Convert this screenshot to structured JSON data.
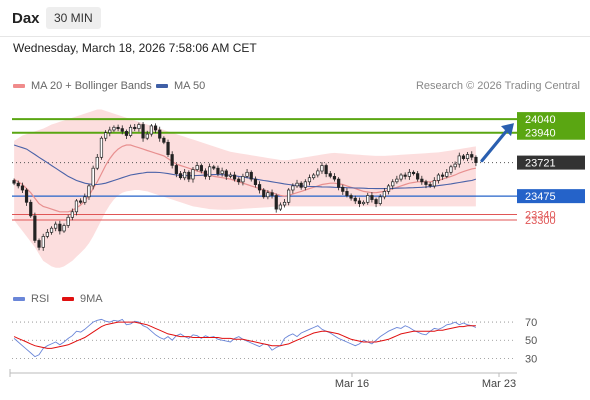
{
  "header": {
    "symbol": "Dax",
    "timeframe": "30 MIN"
  },
  "timestamp": "Wednesday, March 18, 2026 7:58:06 AM CET",
  "credit": "Research © 2026 Trading Central",
  "colors": {
    "candle": "#222222",
    "bollinger_fill": "#fbd8d8",
    "ma20": "#e89090",
    "ma50": "#4a62a8",
    "green_level": "#5aa612",
    "blue_level": "#2563c9",
    "red_level": "#e05656",
    "price": "#333333",
    "rsi": "#6a86d8",
    "rsi_ma": "#e01010",
    "arrow": "#2a5fb0"
  },
  "chart_data": [
    {
      "type": "candlestick",
      "title": "Dax",
      "timeframe": "30 MIN",
      "x_ticks": [
        "Mar 16",
        "Mar 23"
      ],
      "legend": [
        {
          "name": "MA 20 + Bollinger Bands",
          "color": "#f08b8b"
        },
        {
          "name": "MA 50",
          "color": "#3f5fa6"
        }
      ],
      "levels": [
        {
          "value": 24040,
          "label": "24040",
          "kind": "resistance",
          "color": "#5aa612"
        },
        {
          "value": 23940,
          "label": "23940",
          "kind": "resistance",
          "color": "#5aa612"
        },
        {
          "value": 23721,
          "label": "23721",
          "kind": "current",
          "color": "#333333"
        },
        {
          "value": 23475,
          "label": "23475",
          "kind": "pivot",
          "color": "#2563c9"
        },
        {
          "value": 23340,
          "label": "23340",
          "kind": "support",
          "color": "#e05656"
        },
        {
          "value": 23300,
          "label": "23300",
          "kind": "support",
          "color": "#e05656"
        }
      ],
      "close": [
        23570,
        23550,
        23520,
        23430,
        23330,
        23150,
        23100,
        23180,
        23210,
        23240,
        23270,
        23220,
        23260,
        23320,
        23360,
        23440,
        23430,
        23470,
        23550,
        23680,
        23760,
        23900,
        23940,
        23960,
        23980,
        23970,
        23950,
        23920,
        23980,
        23970,
        24000,
        23900,
        23930,
        23990,
        23960,
        23900,
        23870,
        23780,
        23700,
        23640,
        23610,
        23650,
        23600,
        23670,
        23700,
        23660,
        23620,
        23690,
        23680,
        23640,
        23660,
        23620,
        23630,
        23600,
        23580,
        23620,
        23650,
        23600,
        23560,
        23520,
        23470,
        23500,
        23480,
        23380,
        23410,
        23430,
        23520,
        23550,
        23570,
        23540,
        23580,
        23610,
        23630,
        23660,
        23700,
        23640,
        23620,
        23600,
        23540,
        23510,
        23480,
        23460,
        23440,
        23420,
        23430,
        23480,
        23450,
        23420,
        23470,
        23510,
        23550,
        23580,
        23600,
        23630,
        23620,
        23650,
        23640,
        23600,
        23580,
        23560,
        23550,
        23590,
        23630,
        23620,
        23650,
        23690,
        23710,
        23770,
        23750,
        23780,
        23760,
        23721
      ],
      "ma20": [
        23600,
        23580,
        23560,
        23530,
        23500,
        23460,
        23420,
        23400,
        23390,
        23380,
        23370,
        23360,
        23360,
        23360,
        23370,
        23390,
        23410,
        23440,
        23480,
        23530,
        23580,
        23640,
        23700,
        23750,
        23790,
        23820,
        23840,
        23850,
        23850,
        23840,
        23830,
        23820,
        23810,
        23800,
        23790,
        23780,
        23770,
        23750,
        23730,
        23710,
        23700,
        23690,
        23680,
        23670,
        23660,
        23650,
        23640,
        23630,
        23620,
        23615,
        23610,
        23605,
        23600,
        23590,
        23580,
        23570,
        23560,
        23550,
        23540,
        23530,
        23520,
        23510,
        23500,
        23490,
        23480,
        23475,
        23480,
        23490,
        23500,
        23510,
        23520,
        23530,
        23540,
        23550,
        23560,
        23565,
        23570,
        23570,
        23565,
        23560,
        23550,
        23540,
        23530,
        23520,
        23510,
        23505,
        23500,
        23500,
        23505,
        23510,
        23520,
        23530,
        23540,
        23550,
        23560,
        23570,
        23575,
        23580,
        23580,
        23580,
        23580,
        23585,
        23590,
        23600,
        23610,
        23620,
        23630,
        23645,
        23655,
        23665,
        23675,
        23680
      ],
      "ma50": [
        23850,
        23840,
        23830,
        23820,
        23800,
        23780,
        23760,
        23740,
        23720,
        23700,
        23680,
        23660,
        23640,
        23620,
        23605,
        23590,
        23580,
        23570,
        23565,
        23560,
        23560,
        23565,
        23570,
        23580,
        23590,
        23600,
        23610,
        23620,
        23630,
        23635,
        23640,
        23645,
        23650,
        23650,
        23650,
        23648,
        23645,
        23640,
        23635,
        23630,
        23628,
        23626,
        23625,
        23625,
        23626,
        23628,
        23630,
        23632,
        23633,
        23633,
        23632,
        23630,
        23628,
        23625,
        23620,
        23615,
        23610,
        23605,
        23600,
        23595,
        23590,
        23585,
        23580,
        23575,
        23570,
        23565,
        23560,
        23556,
        23553,
        23550,
        23548,
        23546,
        23545,
        23544,
        23543,
        23542,
        23541,
        23540,
        23539,
        23538,
        23537,
        23536,
        23535,
        23534,
        23533,
        23532,
        23531,
        23530,
        23530,
        23530,
        23531,
        23532,
        23533,
        23534,
        23535,
        23536,
        23537,
        23538,
        23540,
        23542,
        23545,
        23548,
        23552,
        23556,
        23560,
        23565,
        23570,
        23575,
        23580,
        23585,
        23590,
        23600
      ],
      "bb_upper": [
        23880,
        23900,
        23920,
        23930,
        23940,
        23950,
        23960,
        23970,
        23985,
        24000,
        24010,
        24020,
        24030,
        24040,
        24050,
        24060,
        24070,
        24080,
        24090,
        24100,
        24110,
        24110,
        24100,
        24090,
        24080,
        24070,
        24060,
        24050,
        24040,
        24030,
        24020,
        24010,
        24000,
        23990,
        23980,
        23970,
        23960,
        23950,
        23940,
        23930,
        23920,
        23910,
        23900,
        23890,
        23880,
        23870,
        23860,
        23850,
        23840,
        23830,
        23820,
        23810,
        23800,
        23795,
        23790,
        23785,
        23780,
        23775,
        23770,
        23765,
        23760,
        23755,
        23750,
        23745,
        23740,
        23738,
        23740,
        23745,
        23750,
        23755,
        23760,
        23765,
        23770,
        23775,
        23780,
        23785,
        23790,
        23792,
        23790,
        23788,
        23785,
        23782,
        23780,
        23778,
        23776,
        23774,
        23772,
        23770,
        23770,
        23770,
        23772,
        23774,
        23776,
        23778,
        23780,
        23782,
        23784,
        23786,
        23788,
        23790,
        23792,
        23794,
        23796,
        23800,
        23805,
        23810,
        23815,
        23820,
        23825,
        23830,
        23835,
        23840
      ],
      "bb_lower": [
        23300,
        23260,
        23220,
        23180,
        23140,
        23100,
        23050,
        23000,
        22980,
        22960,
        22950,
        22950,
        22960,
        22980,
        23000,
        23030,
        23060,
        23090,
        23130,
        23180,
        23240,
        23300,
        23360,
        23410,
        23450,
        23480,
        23500,
        23510,
        23515,
        23520,
        23520,
        23515,
        23510,
        23500,
        23490,
        23480,
        23470,
        23460,
        23450,
        23440,
        23430,
        23420,
        23410,
        23400,
        23395,
        23390,
        23385,
        23380,
        23378,
        23376,
        23375,
        23375,
        23376,
        23378,
        23380,
        23382,
        23384,
        23386,
        23388,
        23390,
        23392,
        23394,
        23396,
        23398,
        23400,
        23400,
        23400,
        23400,
        23400,
        23400,
        23400,
        23400,
        23400,
        23400,
        23400,
        23400,
        23400,
        23400,
        23400,
        23400,
        23400,
        23400,
        23400,
        23400,
        23400,
        23400,
        23400,
        23400,
        23400,
        23400,
        23400,
        23400,
        23400,
        23400,
        23400,
        23400,
        23400,
        23400,
        23400,
        23400,
        23400,
        23400,
        23400,
        23400,
        23400,
        23400,
        23400,
        23400,
        23400,
        23400,
        23400,
        23400
      ],
      "ylim": [
        22860,
        24180
      ],
      "forecast_arrow": {
        "from": 23721,
        "to": 24040
      }
    },
    {
      "type": "line",
      "title": "RSI",
      "series": [
        {
          "name": "RSI",
          "color": "#6a86d8",
          "values": [
            52,
            48,
            44,
            40,
            36,
            32,
            34,
            41,
            44,
            46,
            48,
            45,
            48,
            52,
            55,
            60,
            59,
            62,
            66,
            70,
            72,
            73,
            71,
            70,
            72,
            71,
            73,
            67,
            68,
            71,
            70,
            66,
            64,
            60,
            56,
            53,
            51,
            54,
            50,
            55,
            57,
            54,
            52,
            56,
            55,
            52,
            55,
            53,
            54,
            51,
            50,
            49,
            48,
            52,
            54,
            51,
            49,
            47,
            45,
            43,
            46,
            45,
            39,
            42,
            44,
            52,
            55,
            57,
            54,
            58,
            60,
            62,
            64,
            66,
            62,
            60,
            58,
            55,
            52,
            50,
            48,
            46,
            44,
            46,
            50,
            48,
            46,
            50,
            54,
            57,
            60,
            62,
            64,
            63,
            66,
            64,
            61,
            59,
            57,
            56,
            60,
            63,
            62,
            64,
            67,
            68,
            70,
            67,
            69,
            67,
            66,
            64
          ]
        },
        {
          "name": "9MA",
          "color": "#e01010",
          "values": [
            54,
            52,
            50,
            48,
            46,
            44,
            43,
            42,
            41,
            41,
            42,
            43,
            44,
            45,
            47,
            49,
            51,
            53,
            56,
            59,
            62,
            65,
            67,
            68,
            69,
            70,
            70,
            70,
            70,
            70,
            69,
            68,
            67,
            65,
            63,
            61,
            59,
            57,
            56,
            55,
            54,
            54,
            54,
            53,
            53,
            53,
            53,
            53,
            53,
            53,
            52,
            52,
            52,
            51,
            51,
            51,
            50,
            49,
            48,
            47,
            46,
            45,
            44,
            44,
            44,
            45,
            46,
            48,
            50,
            52,
            54,
            56,
            58,
            59,
            60,
            60,
            59,
            58,
            57,
            55,
            53,
            51,
            50,
            49,
            48,
            48,
            48,
            48,
            49,
            50,
            51,
            53,
            55,
            57,
            58,
            59,
            60,
            60,
            60,
            60,
            60,
            60,
            61,
            61,
            62,
            63,
            64,
            65,
            65,
            66,
            66,
            66
          ]
        }
      ],
      "yticks": [
        70,
        50,
        30
      ],
      "ylim": [
        15,
        80
      ]
    }
  ]
}
